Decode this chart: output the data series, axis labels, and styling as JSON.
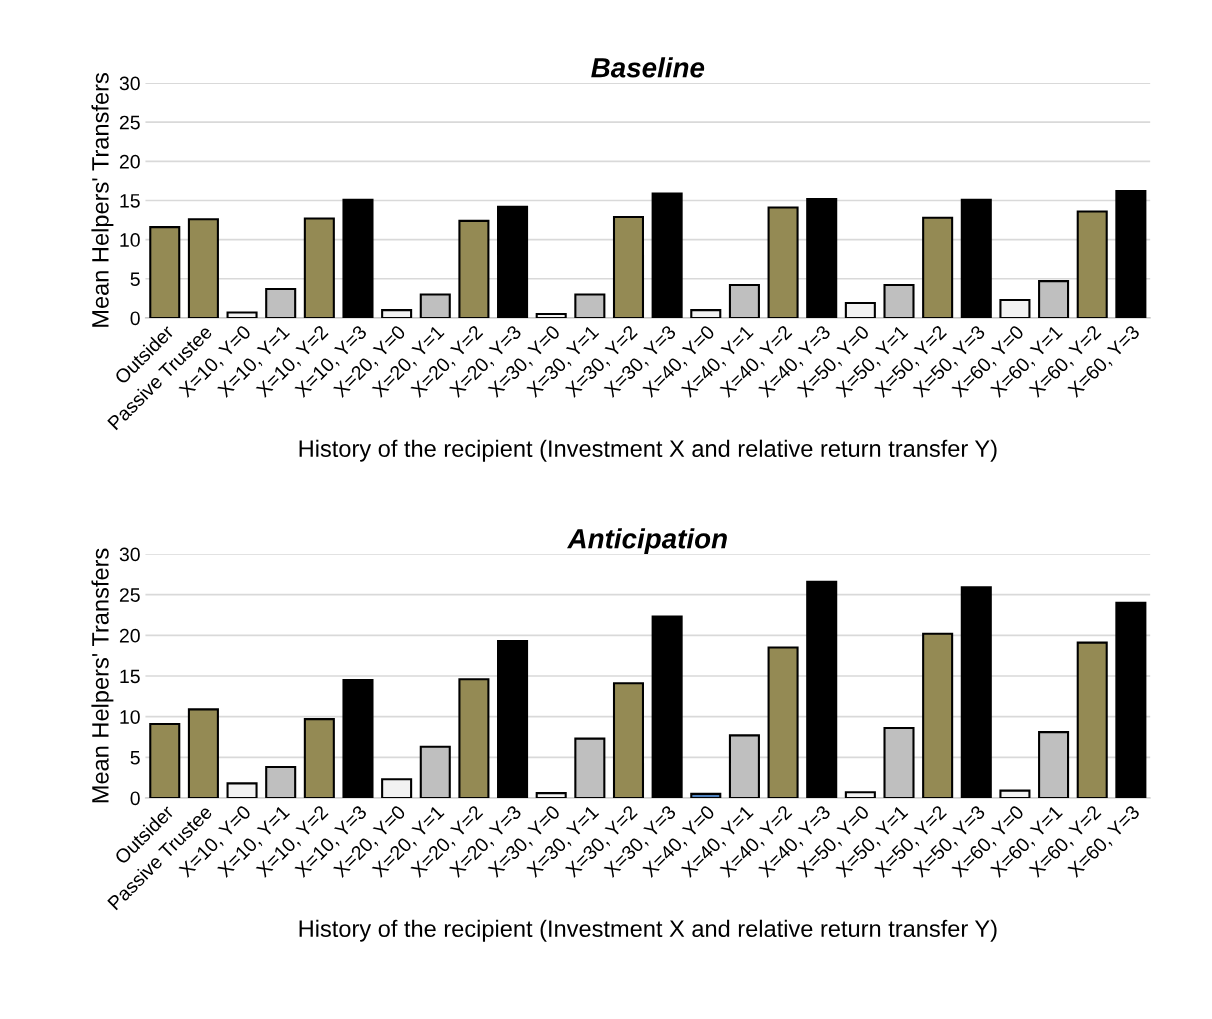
{
  "chart_data": [
    {
      "type": "bar",
      "title": "Baseline",
      "xlabel": "History of the recipient (Investment X and relative return transfer Y)",
      "ylabel": "Mean Helpers' Transfers",
      "categories": [
        "Outsider",
        "Passive Trustee",
        "X=10, Y=0",
        "X=10, Y=1",
        "X=10, Y=2",
        "X=10, Y=3",
        "X=20, Y=0",
        "X=20, Y=1",
        "X=20, Y=2",
        "X=20, Y=3",
        "X=30, Y=0",
        "X=30, Y=1",
        "X=30, Y=2",
        "X=30, Y=3",
        "X=40, Y=0",
        "X=40, Y=1",
        "X=40, Y=2",
        "X=40, Y=3",
        "X=50, Y=0",
        "X=50, Y=1",
        "X=50, Y=2",
        "X=50, Y=3",
        "X=60, Y=0",
        "X=60, Y=1",
        "X=60, Y=2",
        "X=60, Y=3"
      ],
      "values": [
        11.6,
        12.6,
        0.7,
        3.7,
        12.7,
        15.1,
        1.0,
        3.0,
        12.4,
        14.2,
        0.5,
        3.0,
        12.9,
        15.9,
        1.0,
        4.2,
        14.1,
        15.2,
        1.9,
        4.2,
        12.8,
        15.1,
        2.3,
        4.7,
        13.6,
        16.2
      ],
      "colors": [
        "#948a54",
        "#948a54",
        "#f2f2f2",
        "#bfbfbf",
        "#948a54",
        "#000000",
        "#f2f2f2",
        "#bfbfbf",
        "#948a54",
        "#000000",
        "#f2f2f2",
        "#bfbfbf",
        "#948a54",
        "#000000",
        "#f2f2f2",
        "#bfbfbf",
        "#948a54",
        "#000000",
        "#f2f2f2",
        "#bfbfbf",
        "#948a54",
        "#000000",
        "#f2f2f2",
        "#bfbfbf",
        "#948a54",
        "#000000"
      ],
      "ylim": [
        0,
        30
      ],
      "yticks": [
        0,
        5,
        10,
        15,
        20,
        25,
        30
      ],
      "grid": "y"
    },
    {
      "type": "bar",
      "title": "Anticipation",
      "xlabel": "History of the recipient (Investment X and relative return transfer Y)",
      "ylabel": "Mean Helpers' Transfers",
      "categories": [
        "Outsider",
        "Passive Trustee",
        "X=10, Y=0",
        "X=10, Y=1",
        "X=10, Y=2",
        "X=10, Y=3",
        "X=20, Y=0",
        "X=20, Y=1",
        "X=20, Y=2",
        "X=20, Y=3",
        "X=30, Y=0",
        "X=30, Y=1",
        "X=30, Y=2",
        "X=30, Y=3",
        "X=40, Y=0",
        "X=40, Y=1",
        "X=40, Y=2",
        "X=40, Y=3",
        "X=50, Y=0",
        "X=50, Y=1",
        "X=50, Y=2",
        "X=50, Y=3",
        "X=60, Y=0",
        "X=60, Y=1",
        "X=60, Y=2",
        "X=60, Y=3"
      ],
      "values": [
        9.1,
        10.9,
        1.8,
        3.8,
        9.7,
        14.5,
        2.3,
        6.3,
        14.6,
        19.3,
        0.6,
        7.3,
        14.1,
        22.3,
        0.5,
        7.7,
        18.5,
        26.6,
        0.7,
        8.6,
        20.2,
        25.9,
        0.9,
        8.1,
        19.1,
        24.0
      ],
      "colors": [
        "#948a54",
        "#948a54",
        "#f2f2f2",
        "#bfbfbf",
        "#948a54",
        "#000000",
        "#f2f2f2",
        "#bfbfbf",
        "#948a54",
        "#000000",
        "#f2f2f2",
        "#bfbfbf",
        "#948a54",
        "#000000",
        "#4f81bd",
        "#bfbfbf",
        "#948a54",
        "#000000",
        "#f2f2f2",
        "#bfbfbf",
        "#948a54",
        "#000000",
        "#f2f2f2",
        "#bfbfbf",
        "#948a54",
        "#000000"
      ],
      "ylim": [
        0,
        30
      ],
      "yticks": [
        0,
        5,
        10,
        15,
        20,
        25,
        30
      ],
      "grid": "y"
    }
  ]
}
